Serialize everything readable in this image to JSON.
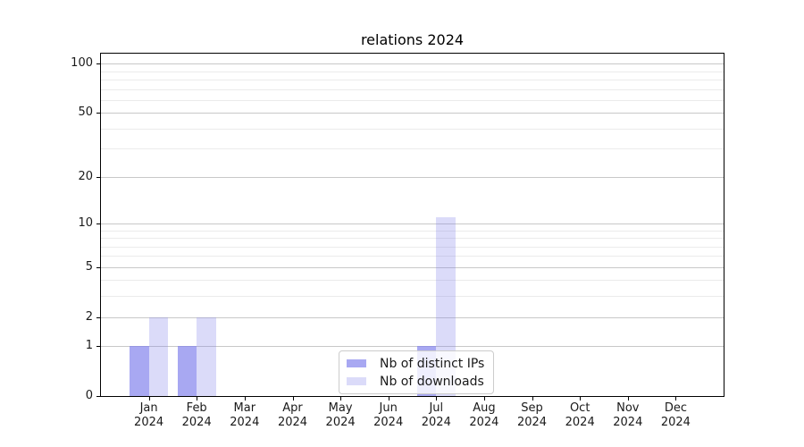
{
  "chart_data": {
    "type": "bar",
    "title": "relations 2024",
    "categories": [
      "Jan",
      "Feb",
      "Mar",
      "Apr",
      "May",
      "Jun",
      "Jul",
      "Aug",
      "Sep",
      "Oct",
      "Nov",
      "Dec"
    ],
    "category_year": "2024",
    "series": [
      {
        "name": "Nb of distinct IPs",
        "color": "rgba(125,125,235,0.67)",
        "values": [
          1,
          1,
          0,
          0,
          0,
          0,
          1,
          0,
          0,
          0,
          0,
          0
        ]
      },
      {
        "name": "Nb of downloads",
        "color": "rgba(125,125,235,0.28)",
        "values": [
          2,
          2,
          0,
          0,
          0,
          0,
          11,
          0,
          0,
          0,
          0,
          0
        ]
      }
    ],
    "yscale": "log1p",
    "ylim": [
      0,
      115
    ],
    "yticks": [
      0,
      1,
      2,
      5,
      10,
      20,
      50,
      100
    ],
    "yticks_minor": [
      3,
      4,
      6,
      7,
      8,
      9,
      30,
      40,
      60,
      70,
      80,
      90
    ],
    "grid": "horizontal",
    "legend_position": "bottom-center",
    "colors": {
      "grid_major": "#c8c8c8",
      "grid_minor": "#ebebeb",
      "spine": "#000000",
      "text": "#1a1a1a",
      "legend_border": "#cccccc"
    }
  }
}
